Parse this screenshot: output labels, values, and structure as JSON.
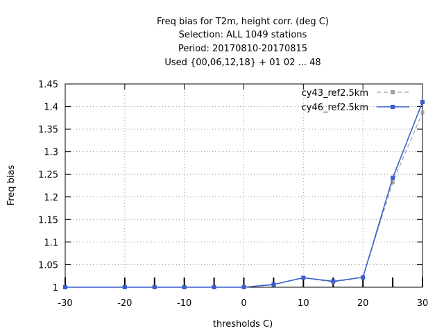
{
  "chart_data": {
    "type": "line",
    "title_lines": [
      "Freq bias  for T2m, height corr. (deg C)",
      "Selection: ALL    1049 stations",
      "Period: 20170810-20170815",
      "Used {00,06,12,18} + 01 02 ... 48"
    ],
    "xlabel": "thresholds C)",
    "ylabel": "Freq bias",
    "xlim": [
      -30,
      30
    ],
    "ylim": [
      1,
      1.45
    ],
    "xticks": [
      -30,
      -20,
      -10,
      0,
      10,
      20,
      30
    ],
    "yticks": [
      1,
      1.05,
      1.1,
      1.15,
      1.2,
      1.25,
      1.3,
      1.35,
      1.4,
      1.45
    ],
    "xtick_labels": [
      "-30",
      "-20",
      "-10",
      "0",
      "10",
      "20",
      "30"
    ],
    "ytick_labels": [
      "1",
      "1.05",
      "1.1",
      "1.15",
      "1.2",
      "1.25",
      "1.3",
      "1.35",
      "1.4",
      "1.45"
    ],
    "x": [
      -30,
      -20,
      -15,
      -10,
      -5,
      0,
      5,
      10,
      15,
      20,
      25,
      30
    ],
    "grid": true,
    "legend_position": "top-right",
    "series": [
      {
        "name": "cy43_ref2.5km",
        "color": "#a0a0a0",
        "dashed": true,
        "values": [
          1.0,
          1.0,
          1.0,
          1.0,
          1.0,
          1.0,
          1.006,
          1.021,
          1.011,
          1.022,
          1.232,
          1.387
        ]
      },
      {
        "name": "cy46_ref2.5km",
        "color": "#3a5fcd",
        "dashed": false,
        "values": [
          1.0,
          1.0,
          1.0,
          1.0,
          1.0,
          1.0,
          1.006,
          1.021,
          1.013,
          1.022,
          1.242,
          1.41
        ]
      }
    ]
  }
}
